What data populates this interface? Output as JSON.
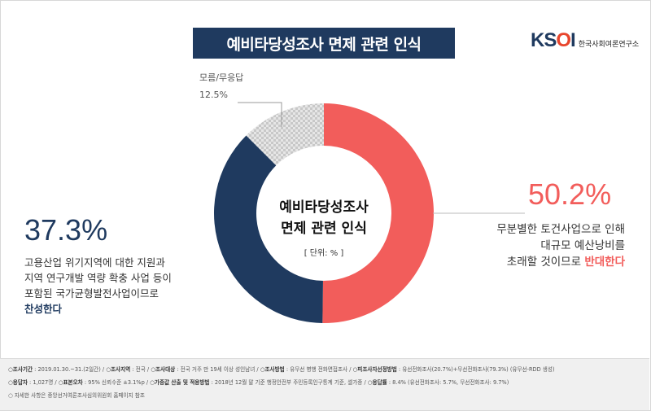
{
  "header": {
    "title": "예비타당성조사 면제 관련 인식",
    "logo_mark_a": "KS",
    "logo_mark_o": "O",
    "logo_mark_i": "I",
    "logo_text": "한국사회여론연구소"
  },
  "chart_data": {
    "type": "pie",
    "donut": true,
    "center_title_line1": "예비타당성조사",
    "center_title_line2": "면제 관련 인식",
    "unit": "[ 단위: % ]",
    "slices": [
      {
        "label": "반대",
        "value": 50.2,
        "display": "50.2%",
        "color": "#f25d5b"
      },
      {
        "label": "찬성",
        "value": 37.3,
        "display": "37.3%",
        "color": "#1f3a5f"
      },
      {
        "label": "모름/무응답",
        "value": 12.5,
        "display": "12.5%",
        "color": "#c8c8c8"
      }
    ]
  },
  "left_desc": {
    "line1": "고용산업 위기지역에 대한 지원과",
    "line2": "지역 연구개발 역량 확충 사업 등이",
    "line3": "포함된 국가균형발전사업이므로",
    "line4_em": "찬성한다"
  },
  "right_desc": {
    "line1": "무분별한 토건사업으로 인해",
    "line2": "대규모 예산낭비를",
    "line3": "초래할 것이므로 ",
    "line3_em": "반대한다"
  },
  "footer": {
    "row1": [
      {
        "k": "조사기간",
        "v": " : 2019.01.30.~31.(2일간) / "
      },
      {
        "k": "조사지역",
        "v": " : 전국 / "
      },
      {
        "k": "조사대상",
        "v": " : 전국 거주 만 19세 이상 성인남녀 / "
      },
      {
        "k": "조사방법",
        "v": " : 유무선 병행 전화면접조사 / "
      },
      {
        "k": "피조사자선정방법",
        "v": " : 유선전화조사(20.7%)+무선전화조사(79.3%) (유무선-RDD 생성)"
      }
    ],
    "row2": [
      {
        "k": "응답자",
        "v": " : 1,027명 / "
      },
      {
        "k": "표본오차",
        "v": " : 95% 신뢰수준 ±3.1%p / "
      },
      {
        "k": "가중값 산출 및 적용방법",
        "v": " : 2018년 12월 말 기준 행정안전부 주민등록인구통계 기준, 셀가중 / "
      },
      {
        "k": "응답률",
        "v": " : 8.4% (유선전화조사: 5.7%, 무선전화조사: 9.7%)"
      }
    ],
    "row3": "자세한 사항은 중앙선거여론조사심의위원회 홈페이지 참조"
  }
}
